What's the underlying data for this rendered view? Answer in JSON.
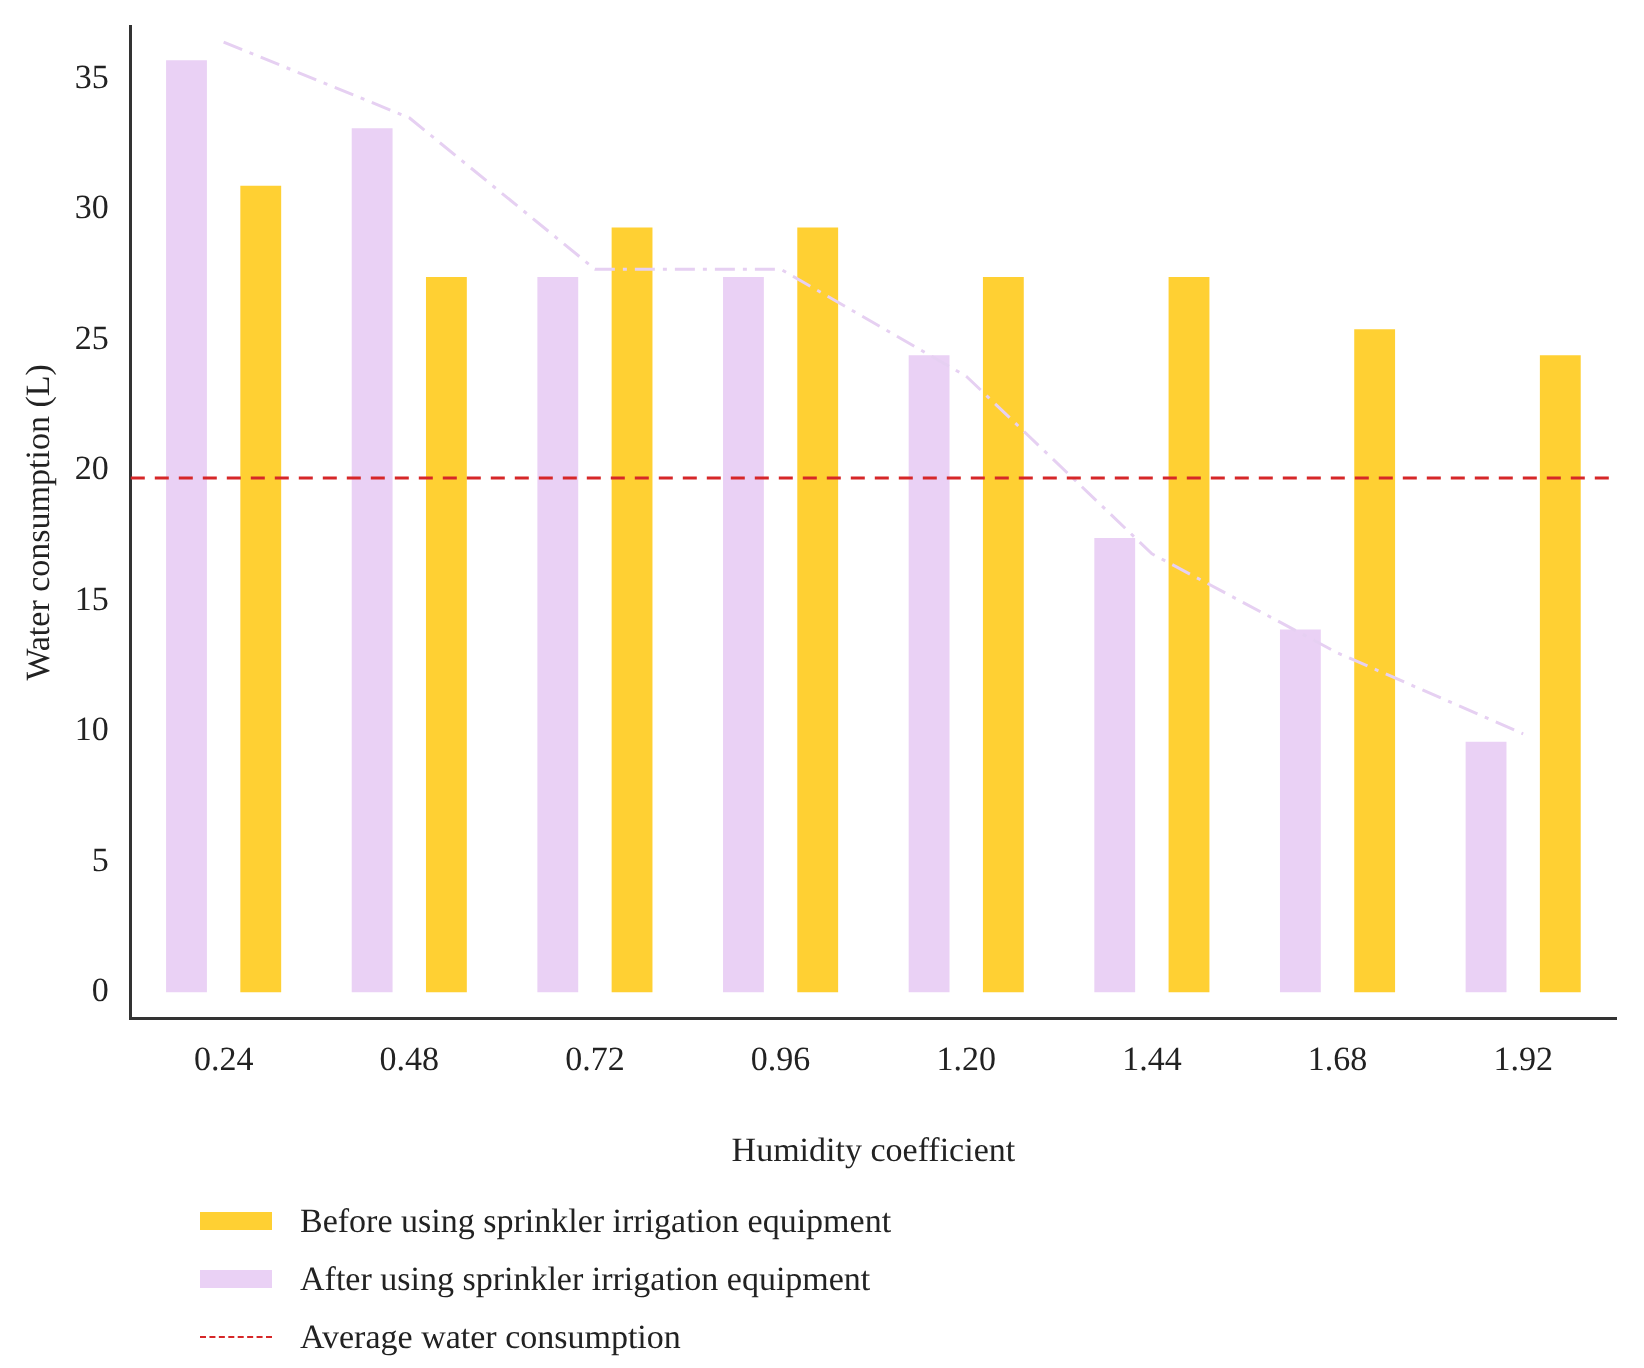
{
  "chart_data": {
    "type": "bar",
    "xlabel": "Humidity coefficient",
    "ylabel": "Water consumption (L)",
    "categories": [
      "0.24",
      "0.48",
      "0.72",
      "0.96",
      "1.20",
      "1.44",
      "1.68",
      "1.92"
    ],
    "series": [
      {
        "name": "After using sprinkler irrigation equipment",
        "color": "#ead1f5",
        "values": [
          35.7,
          33.1,
          27.4,
          27.4,
          24.4,
          17.4,
          13.9,
          9.6
        ]
      },
      {
        "name": "Before using sprinkler irrigation equipment",
        "color": "#ffd033",
        "values": [
          30.9,
          27.4,
          29.3,
          29.3,
          27.4,
          27.4,
          25.4,
          24.4
        ]
      },
      {
        "type": "line",
        "color": "#e6d0f2",
        "line_style": "dashed",
        "marker": "none",
        "values": [
          36.4,
          33.5,
          27.7,
          27.7,
          23.6,
          16.8,
          13.0,
          9.9
        ]
      }
    ],
    "ylim": [
      -1,
      37
    ],
    "yticks": [
      0,
      5,
      10,
      15,
      20,
      25,
      30,
      35
    ],
    "ref_lines": [
      {
        "axis": "y",
        "value": 19.7,
        "label": "Average water consumption",
        "color": "#d62728",
        "line_style": "dashed"
      }
    ],
    "legend": "bottom",
    "grid": false
  }
}
